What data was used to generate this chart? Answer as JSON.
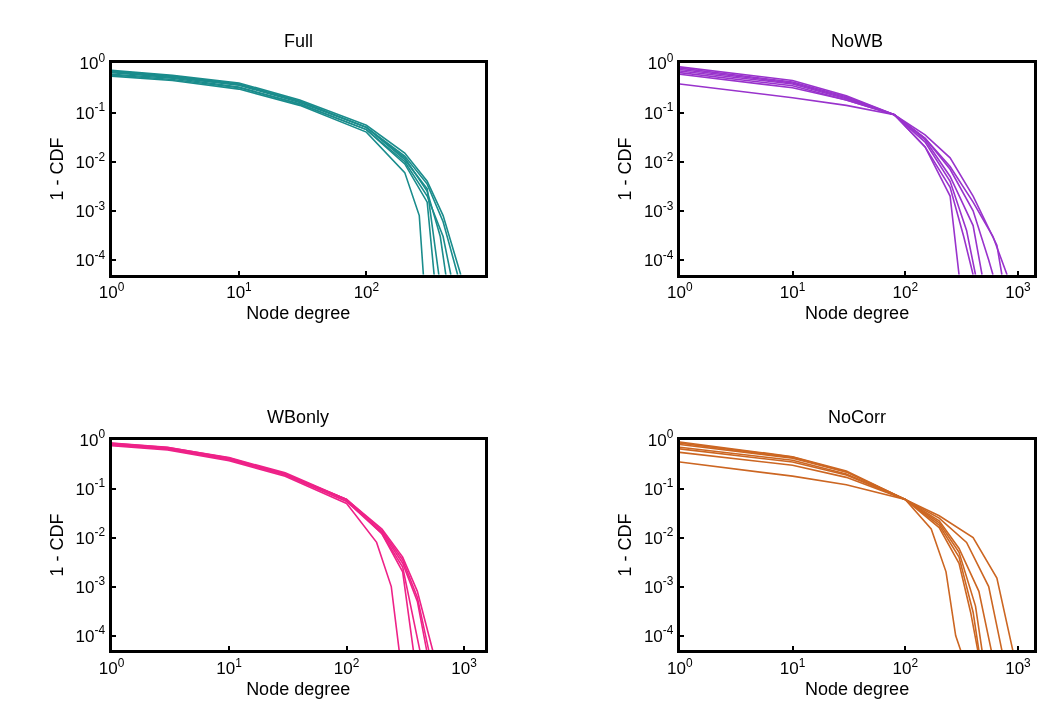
{
  "chart_data": [
    {
      "type": "line",
      "title": "Full",
      "xlabel": "Node degree",
      "ylabel": "1 - CDF",
      "log": "xy",
      "marker": "none",
      "line_style": "solid",
      "xlim": [
        1,
        850
      ],
      "ylim": [
        5e-05,
        1
      ],
      "xticks": [
        {
          "value": 1,
          "label": "10$^{0}$"
        },
        {
          "value": 10,
          "label": "10$^{1}$"
        },
        {
          "value": 100,
          "label": "10$^{2}$"
        }
      ],
      "yticks": [
        {
          "value": 0.0001,
          "label": "10$^{-4}$"
        },
        {
          "value": 0.001,
          "label": "10$^{-3}$"
        },
        {
          "value": 0.01,
          "label": "10$^{-2}$"
        },
        {
          "value": 0.1,
          "label": "10$^{-1}$"
        },
        {
          "value": 1,
          "label": "10$^{0}$"
        }
      ],
      "series": [
        {
          "color": "#1a8c8c",
          "x": [
            1,
            3,
            10,
            30,
            100,
            200,
            300,
            400,
            520
          ],
          "values": [
            0.7,
            0.55,
            0.38,
            0.17,
            0.05,
            0.013,
            0.0035,
            0.0006,
            5e-05
          ]
        },
        {
          "color": "#1a8c8c",
          "x": [
            1,
            3,
            10,
            30,
            100,
            200,
            300,
            400,
            460
          ],
          "values": [
            0.6,
            0.5,
            0.33,
            0.15,
            0.045,
            0.01,
            0.002,
            0.0003,
            5e-05
          ]
        },
        {
          "color": "#1a8c8c",
          "x": [
            1,
            3,
            10,
            30,
            100,
            200,
            260,
            280
          ],
          "values": [
            0.55,
            0.45,
            0.3,
            0.14,
            0.04,
            0.006,
            0.0008,
            5e-05
          ]
        },
        {
          "color": "#1a8c8c",
          "x": [
            1,
            3,
            10,
            30,
            100,
            200,
            300,
            380,
            420
          ],
          "values": [
            0.65,
            0.52,
            0.36,
            0.16,
            0.05,
            0.012,
            0.0025,
            0.0003,
            5e-05
          ]
        },
        {
          "color": "#1a8c8c",
          "x": [
            1,
            3,
            10,
            30,
            100,
            200,
            300,
            400,
            550
          ],
          "values": [
            0.72,
            0.57,
            0.4,
            0.18,
            0.055,
            0.015,
            0.004,
            0.0008,
            5e-05
          ]
        },
        {
          "color": "#1a8c8c",
          "x": [
            1,
            3,
            10,
            30,
            100,
            200,
            300,
            340
          ],
          "values": [
            0.58,
            0.47,
            0.32,
            0.15,
            0.045,
            0.009,
            0.0015,
            5e-05
          ]
        },
        {
          "color": "#1a8c8c",
          "x": [
            1,
            3,
            10,
            30,
            100,
            200,
            300,
            370
          ],
          "values": [
            0.68,
            0.53,
            0.37,
            0.17,
            0.05,
            0.011,
            0.0028,
            5e-05
          ]
        }
      ]
    },
    {
      "type": "line",
      "title": "NoWB",
      "xlabel": "Node degree",
      "ylabel": "1 - CDF",
      "log": "xy",
      "marker": "none",
      "line_style": "solid",
      "xlim": [
        1,
        1400
      ],
      "ylim": [
        5e-05,
        1
      ],
      "xticks": [
        {
          "value": 1,
          "label": "10$^{0}$"
        },
        {
          "value": 10,
          "label": "10$^{1}$"
        },
        {
          "value": 100,
          "label": "10$^{2}$"
        },
        {
          "value": 1000,
          "label": "10$^{3}$"
        }
      ],
      "yticks": [
        {
          "value": 0.0001,
          "label": "10$^{-4}$"
        },
        {
          "value": 0.001,
          "label": "10$^{-3}$"
        },
        {
          "value": 0.01,
          "label": "10$^{-2}$"
        },
        {
          "value": 0.1,
          "label": "10$^{-1}$"
        },
        {
          "value": 1,
          "label": "10$^{0}$"
        }
      ],
      "series": [
        {
          "color": "#9933cc",
          "x": [
            1,
            10,
            30,
            80,
            150,
            250,
            400,
            600,
            800
          ],
          "values": [
            0.38,
            0.2,
            0.14,
            0.09,
            0.03,
            0.008,
            0.0015,
            0.0003,
            5e-05
          ]
        },
        {
          "color": "#9933cc",
          "x": [
            1,
            10,
            30,
            80,
            150,
            250,
            400,
            550,
            600
          ],
          "values": [
            0.6,
            0.32,
            0.18,
            0.09,
            0.03,
            0.007,
            0.001,
            0.0001,
            5e-05
          ]
        },
        {
          "color": "#9933cc",
          "x": [
            1,
            10,
            30,
            80,
            150,
            250,
            300
          ],
          "values": [
            0.75,
            0.4,
            0.2,
            0.09,
            0.02,
            0.002,
            5e-05
          ]
        },
        {
          "color": "#9933cc",
          "x": [
            1,
            10,
            30,
            80,
            150,
            250,
            330,
            400
          ],
          "values": [
            0.85,
            0.45,
            0.22,
            0.09,
            0.02,
            0.003,
            0.0003,
            5e-05
          ]
        },
        {
          "color": "#9933cc",
          "x": [
            1,
            10,
            30,
            80,
            150,
            250,
            350,
            420
          ],
          "values": [
            0.7,
            0.38,
            0.19,
            0.09,
            0.025,
            0.004,
            0.0004,
            5e-05
          ]
        },
        {
          "color": "#9933cc",
          "x": [
            1,
            10,
            30,
            80,
            150,
            250,
            400,
            480
          ],
          "values": [
            0.65,
            0.35,
            0.18,
            0.09,
            0.028,
            0.005,
            0.0005,
            5e-05
          ]
        },
        {
          "color": "#9933cc",
          "x": [
            1,
            10,
            30,
            80,
            150,
            250,
            400,
            650,
            720
          ],
          "values": [
            0.8,
            0.42,
            0.21,
            0.09,
            0.035,
            0.012,
            0.002,
            0.0002,
            5e-05
          ]
        }
      ]
    },
    {
      "type": "line",
      "title": "WBonly",
      "xlabel": "Node degree",
      "ylabel": "1 - CDF",
      "log": "xy",
      "marker": "none",
      "line_style": "solid",
      "xlim": [
        1,
        1500
      ],
      "ylim": [
        5e-05,
        1
      ],
      "xticks": [
        {
          "value": 1,
          "label": "10$^{0}$"
        },
        {
          "value": 10,
          "label": "10$^{1}$"
        },
        {
          "value": 100,
          "label": "10$^{2}$"
        },
        {
          "value": 1000,
          "label": "10$^{3}$"
        }
      ],
      "yticks": [
        {
          "value": 0.0001,
          "label": "10$^{-4}$"
        },
        {
          "value": 0.001,
          "label": "10$^{-3}$"
        },
        {
          "value": 0.01,
          "label": "10$^{-2}$"
        },
        {
          "value": 0.1,
          "label": "10$^{-1}$"
        },
        {
          "value": 1,
          "label": "10$^{0}$"
        }
      ],
      "series": [
        {
          "color": "#ee2288",
          "x": [
            1,
            3,
            10,
            30,
            100,
            200,
            300,
            400,
            540
          ],
          "values": [
            0.85,
            0.7,
            0.42,
            0.2,
            0.06,
            0.015,
            0.004,
            0.0008,
            5e-05
          ]
        },
        {
          "color": "#ee2288",
          "x": [
            1,
            3,
            10,
            30,
            100,
            200,
            300,
            400,
            480
          ],
          "values": [
            0.8,
            0.65,
            0.4,
            0.19,
            0.055,
            0.013,
            0.003,
            0.0005,
            5e-05
          ]
        },
        {
          "color": "#ee2288",
          "x": [
            1,
            3,
            10,
            30,
            100,
            180,
            240,
            280
          ],
          "values": [
            0.75,
            0.62,
            0.37,
            0.18,
            0.05,
            0.008,
            0.001,
            5e-05
          ]
        },
        {
          "color": "#ee2288",
          "x": [
            1,
            3,
            10,
            30,
            100,
            200,
            300,
            370
          ],
          "values": [
            0.82,
            0.67,
            0.41,
            0.2,
            0.06,
            0.012,
            0.002,
            5e-05
          ]
        },
        {
          "color": "#ee2288",
          "x": [
            1,
            3,
            10,
            30,
            100,
            200,
            300,
            420
          ],
          "values": [
            0.78,
            0.64,
            0.39,
            0.19,
            0.055,
            0.012,
            0.0025,
            5e-05
          ]
        },
        {
          "color": "#ee2288",
          "x": [
            1,
            3,
            10,
            30,
            100,
            200,
            300,
            400,
            500
          ],
          "values": [
            0.84,
            0.69,
            0.43,
            0.21,
            0.06,
            0.014,
            0.0035,
            0.0006,
            5e-05
          ]
        }
      ]
    },
    {
      "type": "line",
      "title": "NoCorr",
      "xlabel": "Node degree",
      "ylabel": "1 - CDF",
      "log": "xy",
      "marker": "none",
      "line_style": "solid",
      "xlim": [
        1,
        1400
      ],
      "ylim": [
        5e-05,
        1
      ],
      "xticks": [
        {
          "value": 1,
          "label": "10$^{0}$"
        },
        {
          "value": 10,
          "label": "10$^{1}$"
        },
        {
          "value": 100,
          "label": "10$^{2}$"
        },
        {
          "value": 1000,
          "label": "10$^{3}$"
        }
      ],
      "yticks": [
        {
          "value": 0.0001,
          "label": "10$^{-4}$"
        },
        {
          "value": 0.001,
          "label": "10$^{-3}$"
        },
        {
          "value": 0.01,
          "label": "10$^{-2}$"
        },
        {
          "value": 0.1,
          "label": "10$^{-1}$"
        },
        {
          "value": 1,
          "label": "10$^{0}$"
        }
      ],
      "series": [
        {
          "color": "#cc6622",
          "x": [
            1,
            10,
            30,
            100,
            170,
            230,
            280,
            310
          ],
          "values": [
            0.35,
            0.18,
            0.12,
            0.06,
            0.015,
            0.002,
            0.0001,
            5e-05
          ]
        },
        {
          "color": "#cc6622",
          "x": [
            1,
            10,
            30,
            100,
            200,
            300,
            400,
            450
          ],
          "values": [
            0.55,
            0.3,
            0.17,
            0.06,
            0.018,
            0.004,
            0.0003,
            5e-05
          ]
        },
        {
          "color": "#cc6622",
          "x": [
            1,
            10,
            30,
            100,
            200,
            300,
            420,
            480
          ],
          "values": [
            0.7,
            0.38,
            0.2,
            0.06,
            0.02,
            0.005,
            0.0004,
            5e-05
          ]
        },
        {
          "color": "#cc6622",
          "x": [
            1,
            10,
            30,
            100,
            200,
            300,
            450,
            580
          ],
          "values": [
            0.8,
            0.42,
            0.22,
            0.06,
            0.022,
            0.006,
            0.0008,
            5e-05
          ]
        },
        {
          "color": "#cc6622",
          "x": [
            1,
            10,
            30,
            100,
            200,
            350,
            550,
            720
          ],
          "values": [
            0.9,
            0.45,
            0.23,
            0.06,
            0.025,
            0.008,
            0.001,
            5e-05
          ]
        },
        {
          "color": "#cc6622",
          "x": [
            1,
            10,
            30,
            100,
            200,
            400,
            650,
            900
          ],
          "values": [
            0.85,
            0.44,
            0.22,
            0.06,
            0.028,
            0.01,
            0.0015,
            5e-05
          ]
        },
        {
          "color": "#cc6622",
          "x": [
            1,
            10,
            30,
            100,
            200,
            300,
            380,
            440
          ],
          "values": [
            0.65,
            0.35,
            0.19,
            0.06,
            0.016,
            0.003,
            0.0003,
            5e-05
          ]
        }
      ]
    }
  ]
}
